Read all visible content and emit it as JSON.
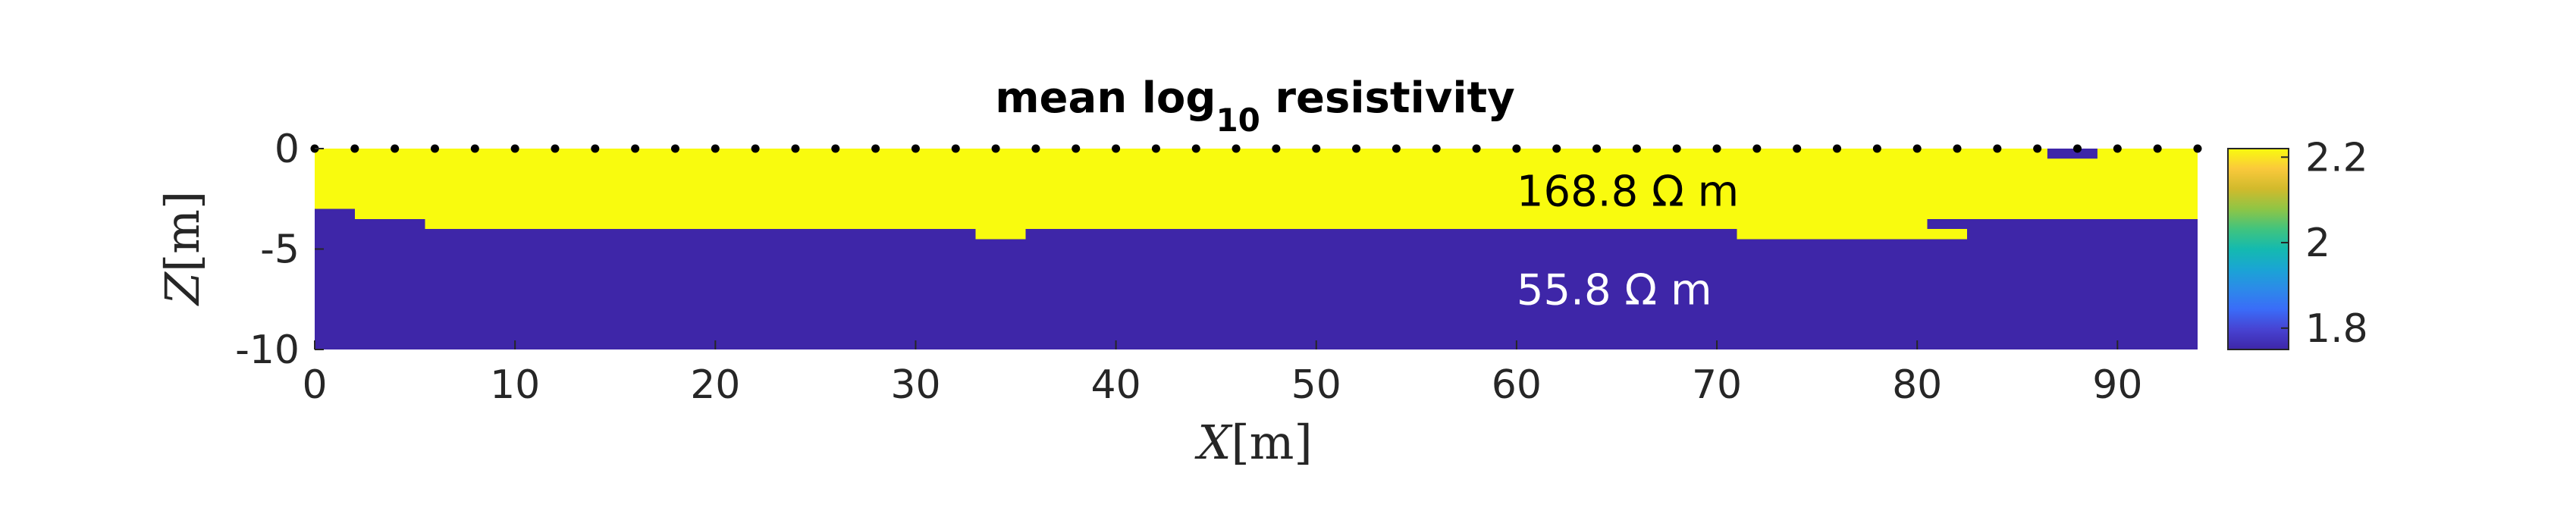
{
  "chart_data": {
    "type": "heatmap",
    "title": "mean log",
    "title_sub": "10",
    "title_rest": " resistivity",
    "xlabel_var": "X",
    "xlabel_unit": "[m]",
    "ylabel_var": "Z",
    "ylabel_unit": "[m]",
    "xlim": [
      0,
      94
    ],
    "ylim": [
      -10,
      0
    ],
    "x_ticks": [
      0,
      10,
      20,
      30,
      40,
      50,
      60,
      70,
      80,
      90
    ],
    "y_ticks": [
      0,
      -5,
      -10
    ],
    "y_tick_labels": [
      "0",
      "-5",
      "-10"
    ],
    "colorbar": {
      "range": [
        1.75,
        2.22
      ],
      "ticks": [
        2.2,
        2,
        1.8
      ],
      "tick_labels": [
        "2.2",
        "2",
        "1.8"
      ],
      "colormap": "parula"
    },
    "layers": [
      {
        "label": "168.8 Ω m",
        "log10_value": 2.227,
        "color": "#F9FB0E",
        "label_color": "#000000",
        "label_x": 60,
        "label_y": -2.1
      },
      {
        "label": "55.8 Ω m",
        "log10_value": 1.747,
        "color": "#3E26A8",
        "label_color": "#ffffff",
        "label_x": 60,
        "label_y": -7.0
      }
    ],
    "interface_depth": [
      {
        "x0": 0,
        "x1": 2,
        "z": -3.0
      },
      {
        "x0": 2,
        "x1": 5.5,
        "z": -3.5
      },
      {
        "x0": 5.5,
        "x1": 33,
        "z": -4.0
      },
      {
        "x0": 33,
        "x1": 35.5,
        "z": -4.5
      },
      {
        "x0": 35.5,
        "x1": 71,
        "z": -4.0
      },
      {
        "x0": 71,
        "x1": 80.5,
        "z": -4.5
      },
      {
        "x0": 80.5,
        "x1": 82.5,
        "z": -4.5
      },
      {
        "x0": 82.5,
        "x1": 94,
        "z": -3.5
      }
    ],
    "interface_step": {
      "x0": 80.5,
      "x1": 82.5,
      "z_top": -3.5,
      "z_bottom": -4.0
    },
    "anomaly": {
      "x0": 86.5,
      "x1": 89,
      "z0": -0.5,
      "z1": 0
    },
    "electrodes_x": [
      0,
      2,
      4,
      6,
      8,
      10,
      12,
      14,
      16,
      18,
      20,
      22,
      24,
      26,
      28,
      30,
      32,
      34,
      36,
      38,
      40,
      42,
      44,
      46,
      48,
      50,
      52,
      54,
      56,
      58,
      60,
      62,
      64,
      66,
      68,
      70,
      72,
      74,
      76,
      78,
      80,
      82,
      84,
      86,
      88,
      90,
      92,
      94
    ]
  }
}
